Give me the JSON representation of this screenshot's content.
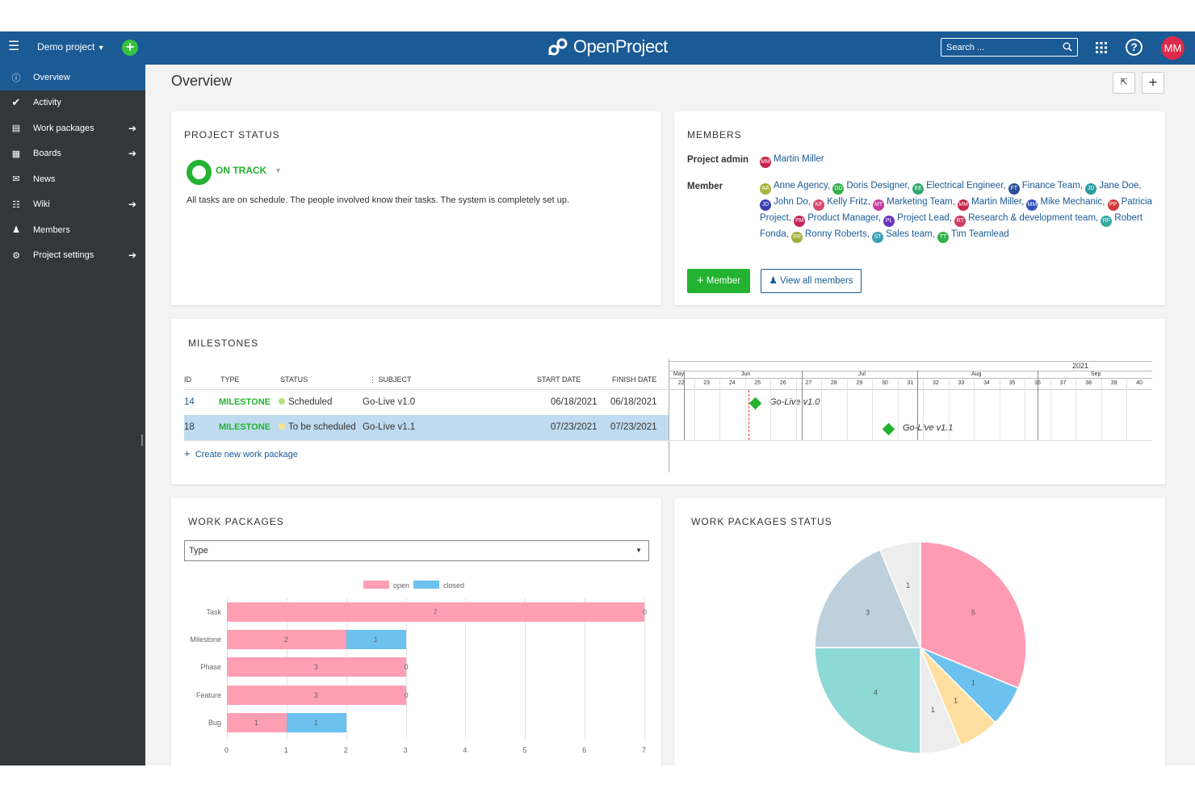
{
  "topbar": {
    "project": "Demo project",
    "logo_text": "OpenProject",
    "search_placeholder": "Search ...",
    "avatar_initials": "MM",
    "help": "?"
  },
  "sidebar": {
    "items": [
      {
        "label": "Overview",
        "icon": "info-icon",
        "active": true,
        "arrow": false
      },
      {
        "label": "Activity",
        "icon": "checkmark-icon",
        "active": false,
        "arrow": false
      },
      {
        "label": "Work packages",
        "icon": "list-icon",
        "active": false,
        "arrow": true
      },
      {
        "label": "Boards",
        "icon": "board-icon",
        "active": false,
        "arrow": true
      },
      {
        "label": "News",
        "icon": "megaphone-icon",
        "active": false,
        "arrow": false
      },
      {
        "label": "Wiki",
        "icon": "book-icon",
        "active": false,
        "arrow": true
      },
      {
        "label": "Members",
        "icon": "members-icon",
        "active": false,
        "arrow": false
      },
      {
        "label": "Project settings",
        "icon": "gears-icon",
        "active": false,
        "arrow": true
      }
    ]
  },
  "page": {
    "title": "Overview"
  },
  "project_status": {
    "heading": "PROJECT STATUS",
    "status": "ON TRACK",
    "description": "All tasks are on schedule. The people involved know their tasks. The system is completely set up."
  },
  "members": {
    "heading": "MEMBERS",
    "admin_label": "Project admin",
    "admin": {
      "name": "Martin Miller",
      "initials": "MM",
      "color": "#c7254e"
    },
    "member_label": "Member",
    "list": [
      {
        "name": "Anne Agency",
        "initials": "AA",
        "color": "#a7b43a"
      },
      {
        "name": "Doris Designer",
        "initials": "DD",
        "color": "#35b04a"
      },
      {
        "name": "Electrical Engineer",
        "initials": "EE",
        "color": "#31a86e"
      },
      {
        "name": "Finance Team",
        "initials": "FT",
        "color": "#2d4f9a"
      },
      {
        "name": "Jane Doe",
        "initials": "JD",
        "color": "#2a9da0"
      },
      {
        "name": "John Do",
        "initials": "JD",
        "color": "#3a3fb5"
      },
      {
        "name": "Kelly Fritz",
        "initials": "KF",
        "color": "#d64a6b"
      },
      {
        "name": "Marketing Team",
        "initials": "MT",
        "color": "#c23a9c"
      },
      {
        "name": "Martin Miller",
        "initials": "MM",
        "color": "#c7254e"
      },
      {
        "name": "Mike Mechanic",
        "initials": "MM",
        "color": "#3353b8"
      },
      {
        "name": "Patricia Project",
        "initials": "PP",
        "color": "#d23b3b"
      },
      {
        "name": "Product Manager",
        "initials": "PM",
        "color": "#c2275a"
      },
      {
        "name": "Project Lead",
        "initials": "PL",
        "color": "#6a35c0"
      },
      {
        "name": "Research & development team",
        "initials": "RT",
        "color": "#cf3f62"
      },
      {
        "name": "Robert Fonda",
        "initials": "RF",
        "color": "#3aa9a0"
      },
      {
        "name": "Ronny Roberts",
        "initials": "RR",
        "color": "#a3ad3a"
      },
      {
        "name": "Sales team",
        "initials": "ST",
        "color": "#3a9fb0"
      },
      {
        "name": "Tim Teamlead",
        "initials": "TT",
        "color": "#35b04a"
      }
    ],
    "add_button": "Member",
    "view_all_button": "View all members"
  },
  "milestones": {
    "heading": "MILESTONES",
    "columns": [
      "ID",
      "TYPE",
      "STATUS",
      "SUBJECT",
      "START DATE",
      "FINISH DATE"
    ],
    "rows": [
      {
        "id": "14",
        "type": "MILESTONE",
        "status": "Scheduled",
        "status_color": "#b7e27a",
        "subject": "Go-Live v1.0",
        "start": "06/18/2021",
        "finish": "06/18/2021",
        "selected": false
      },
      {
        "id": "18",
        "type": "MILESTONE",
        "status": "To be scheduled",
        "status_color": "#f7e48a",
        "subject": "Go-Live v1.1",
        "start": "07/23/2021",
        "finish": "07/23/2021",
        "selected": true
      }
    ],
    "create_link": "Create new work package",
    "gantt": {
      "year": "2021",
      "months": [
        "May",
        "Jun",
        "Jul",
        "Aug",
        "Sep"
      ],
      "weeks": [
        "22",
        "23",
        "24",
        "25",
        "26",
        "27",
        "28",
        "29",
        "30",
        "31",
        "32",
        "33",
        "34",
        "35",
        "36",
        "37",
        "38",
        "39",
        "40"
      ],
      "labels": [
        "Go-Live v1.0",
        "Go-Live v1.1"
      ]
    }
  },
  "work_packages": {
    "heading": "WORK PACKAGES",
    "group_by": "Type",
    "legend": [
      {
        "name": "open",
        "color": "#ff9fb4"
      },
      {
        "name": "closed",
        "color": "#6cc1ef"
      }
    ]
  },
  "chart_data": [
    {
      "type": "bar",
      "orientation": "horizontal",
      "stacked": true,
      "categories": [
        "Task",
        "Milestone",
        "Phase",
        "Feature",
        "Bug"
      ],
      "series": [
        {
          "name": "open",
          "values": [
            7,
            2,
            3,
            3,
            1
          ],
          "color": "#ff9fb4"
        },
        {
          "name": "closed",
          "values": [
            0,
            1,
            0,
            0,
            1
          ],
          "color": "#6cc1ef"
        }
      ],
      "xlim": [
        0,
        7
      ],
      "xticks": [
        "0",
        "1",
        "2",
        "3",
        "4",
        "5",
        "6",
        "7"
      ],
      "legend": "top"
    },
    {
      "type": "pie",
      "title": "WORK PACKAGES STATUS",
      "values": [
        5,
        1,
        1,
        1,
        4,
        3,
        1
      ],
      "colors": [
        "#ff9bb2",
        "#6cc1ef",
        "#ffdf9f",
        "#ededed",
        "#8cd9d6",
        "#bdd0dc",
        "#ededed"
      ]
    }
  ]
}
